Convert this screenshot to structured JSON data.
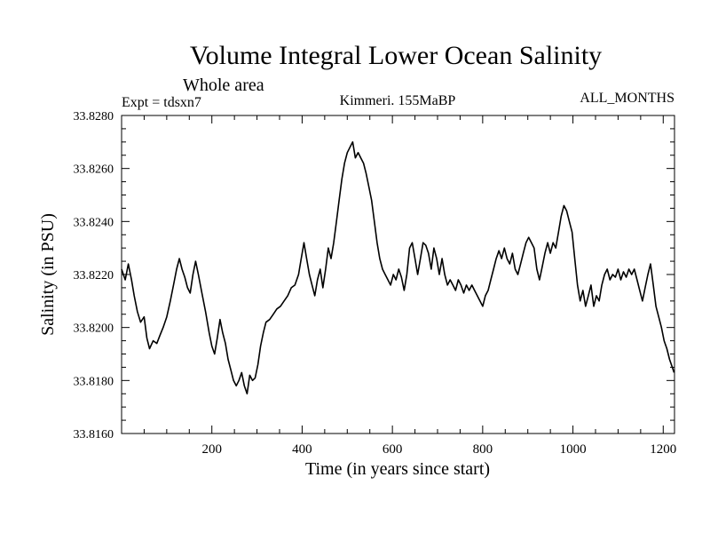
{
  "chart_data": {
    "type": "line",
    "title": "Volume Integral Lower Ocean Salinity",
    "subtitle": "Whole area",
    "annotations": {
      "left": "Expt = tdsxn7",
      "center": "Kimmeri. 155MaBP",
      "right": "ALL_MONTHS"
    },
    "xlabel": "Time (in years since start)",
    "ylabel": "Salinity (in PSU)",
    "xlim": [
      0,
      1225
    ],
    "ylim": [
      33.816,
      33.828
    ],
    "xticks": [
      200,
      400,
      600,
      800,
      1000,
      1200
    ],
    "xtick_labels": [
      "200",
      "400",
      "600",
      "800",
      "1000",
      "1200"
    ],
    "yticks": [
      33.816,
      33.818,
      33.82,
      33.822,
      33.824,
      33.826,
      33.828
    ],
    "ytick_labels": [
      "33.8160",
      "33.8180",
      "33.8200",
      "33.8220",
      "33.8240",
      "33.8260",
      "33.8280"
    ],
    "grid": false,
    "series": [
      {
        "name": "Lower ocean salinity",
        "color": "#000000",
        "points": [
          [
            0,
            33.8222
          ],
          [
            8,
            33.8218
          ],
          [
            15,
            33.8224
          ],
          [
            22,
            33.8218
          ],
          [
            28,
            33.8212
          ],
          [
            35,
            33.8206
          ],
          [
            42,
            33.8202
          ],
          [
            50,
            33.8204
          ],
          [
            56,
            33.8196
          ],
          [
            62,
            33.8192
          ],
          [
            70,
            33.8195
          ],
          [
            78,
            33.8194
          ],
          [
            85,
            33.8197
          ],
          [
            92,
            33.82
          ],
          [
            100,
            33.8204
          ],
          [
            108,
            33.821
          ],
          [
            115,
            33.8216
          ],
          [
            122,
            33.8222
          ],
          [
            128,
            33.8226
          ],
          [
            134,
            33.8222
          ],
          [
            140,
            33.8219
          ],
          [
            146,
            33.8215
          ],
          [
            152,
            33.8213
          ],
          [
            158,
            33.822
          ],
          [
            164,
            33.8225
          ],
          [
            170,
            33.822
          ],
          [
            178,
            33.8213
          ],
          [
            186,
            33.8206
          ],
          [
            194,
            33.8198
          ],
          [
            200,
            33.8193
          ],
          [
            206,
            33.819
          ],
          [
            212,
            33.8196
          ],
          [
            218,
            33.8203
          ],
          [
            224,
            33.8198
          ],
          [
            230,
            33.8194
          ],
          [
            236,
            33.8188
          ],
          [
            242,
            33.8184
          ],
          [
            248,
            33.818
          ],
          [
            254,
            33.8178
          ],
          [
            260,
            33.818
          ],
          [
            266,
            33.8183
          ],
          [
            272,
            33.8178
          ],
          [
            278,
            33.8175
          ],
          [
            284,
            33.8182
          ],
          [
            290,
            33.818
          ],
          [
            296,
            33.8181
          ],
          [
            302,
            33.8186
          ],
          [
            308,
            33.8193
          ],
          [
            314,
            33.8198
          ],
          [
            320,
            33.8202
          ],
          [
            328,
            33.8203
          ],
          [
            336,
            33.8205
          ],
          [
            344,
            33.8207
          ],
          [
            352,
            33.8208
          ],
          [
            360,
            33.821
          ],
          [
            368,
            33.8212
          ],
          [
            376,
            33.8215
          ],
          [
            384,
            33.8216
          ],
          [
            392,
            33.822
          ],
          [
            398,
            33.8226
          ],
          [
            404,
            33.8232
          ],
          [
            410,
            33.8226
          ],
          [
            416,
            33.822
          ],
          [
            422,
            33.8216
          ],
          [
            428,
            33.8212
          ],
          [
            434,
            33.8218
          ],
          [
            440,
            33.8222
          ],
          [
            446,
            33.8215
          ],
          [
            452,
            33.8222
          ],
          [
            458,
            33.823
          ],
          [
            464,
            33.8226
          ],
          [
            470,
            33.8232
          ],
          [
            476,
            33.824
          ],
          [
            482,
            33.8248
          ],
          [
            488,
            33.8256
          ],
          [
            494,
            33.8262
          ],
          [
            500,
            33.8266
          ],
          [
            506,
            33.8268
          ],
          [
            512,
            33.827
          ],
          [
            518,
            33.8264
          ],
          [
            524,
            33.8266
          ],
          [
            530,
            33.8264
          ],
          [
            536,
            33.8262
          ],
          [
            542,
            33.8258
          ],
          [
            548,
            33.8253
          ],
          [
            554,
            33.8248
          ],
          [
            560,
            33.824
          ],
          [
            566,
            33.8232
          ],
          [
            572,
            33.8226
          ],
          [
            578,
            33.8222
          ],
          [
            584,
            33.822
          ],
          [
            590,
            33.8218
          ],
          [
            596,
            33.8216
          ],
          [
            602,
            33.822
          ],
          [
            608,
            33.8218
          ],
          [
            614,
            33.8222
          ],
          [
            620,
            33.8219
          ],
          [
            626,
            33.8214
          ],
          [
            632,
            33.822
          ],
          [
            638,
            33.823
          ],
          [
            644,
            33.8232
          ],
          [
            650,
            33.8226
          ],
          [
            656,
            33.822
          ],
          [
            662,
            33.8226
          ],
          [
            668,
            33.8232
          ],
          [
            674,
            33.8231
          ],
          [
            680,
            33.8228
          ],
          [
            686,
            33.8222
          ],
          [
            692,
            33.823
          ],
          [
            698,
            33.8226
          ],
          [
            704,
            33.822
          ],
          [
            710,
            33.8226
          ],
          [
            716,
            33.822
          ],
          [
            722,
            33.8216
          ],
          [
            728,
            33.8218
          ],
          [
            734,
            33.8216
          ],
          [
            740,
            33.8214
          ],
          [
            746,
            33.8218
          ],
          [
            752,
            33.8216
          ],
          [
            758,
            33.8213
          ],
          [
            764,
            33.8216
          ],
          [
            770,
            33.8214
          ],
          [
            776,
            33.8216
          ],
          [
            782,
            33.8214
          ],
          [
            788,
            33.8212
          ],
          [
            794,
            33.821
          ],
          [
            800,
            33.8208
          ],
          [
            806,
            33.8212
          ],
          [
            812,
            33.8214
          ],
          [
            818,
            33.8218
          ],
          [
            824,
            33.8222
          ],
          [
            830,
            33.8226
          ],
          [
            836,
            33.8229
          ],
          [
            842,
            33.8226
          ],
          [
            848,
            33.823
          ],
          [
            854,
            33.8226
          ],
          [
            860,
            33.8224
          ],
          [
            866,
            33.8228
          ],
          [
            872,
            33.8222
          ],
          [
            878,
            33.822
          ],
          [
            884,
            33.8224
          ],
          [
            890,
            33.8228
          ],
          [
            896,
            33.8232
          ],
          [
            902,
            33.8234
          ],
          [
            908,
            33.8232
          ],
          [
            914,
            33.823
          ],
          [
            920,
            33.8222
          ],
          [
            926,
            33.8218
          ],
          [
            932,
            33.8223
          ],
          [
            938,
            33.8228
          ],
          [
            944,
            33.8232
          ],
          [
            950,
            33.8228
          ],
          [
            956,
            33.8232
          ],
          [
            962,
            33.823
          ],
          [
            968,
            33.8236
          ],
          [
            974,
            33.8242
          ],
          [
            980,
            33.8246
          ],
          [
            986,
            33.8244
          ],
          [
            992,
            33.824
          ],
          [
            998,
            33.8236
          ],
          [
            1004,
            33.8226
          ],
          [
            1010,
            33.8216
          ],
          [
            1016,
            33.821
          ],
          [
            1022,
            33.8214
          ],
          [
            1028,
            33.8208
          ],
          [
            1034,
            33.8212
          ],
          [
            1040,
            33.8216
          ],
          [
            1046,
            33.8208
          ],
          [
            1052,
            33.8212
          ],
          [
            1058,
            33.821
          ],
          [
            1064,
            33.8216
          ],
          [
            1070,
            33.822
          ],
          [
            1076,
            33.8222
          ],
          [
            1082,
            33.8218
          ],
          [
            1088,
            33.822
          ],
          [
            1094,
            33.8219
          ],
          [
            1100,
            33.8222
          ],
          [
            1106,
            33.8218
          ],
          [
            1112,
            33.8221
          ],
          [
            1118,
            33.8219
          ],
          [
            1124,
            33.8222
          ],
          [
            1130,
            33.822
          ],
          [
            1136,
            33.8222
          ],
          [
            1142,
            33.8218
          ],
          [
            1148,
            33.8214
          ],
          [
            1154,
            33.821
          ],
          [
            1160,
            33.8215
          ],
          [
            1166,
            33.822
          ],
          [
            1172,
            33.8224
          ],
          [
            1178,
            33.8216
          ],
          [
            1184,
            33.8208
          ],
          [
            1190,
            33.8204
          ],
          [
            1196,
            33.82
          ],
          [
            1202,
            33.8195
          ],
          [
            1208,
            33.8192
          ],
          [
            1214,
            33.8188
          ],
          [
            1220,
            33.8185
          ],
          [
            1224,
            33.8183
          ]
        ]
      }
    ]
  }
}
